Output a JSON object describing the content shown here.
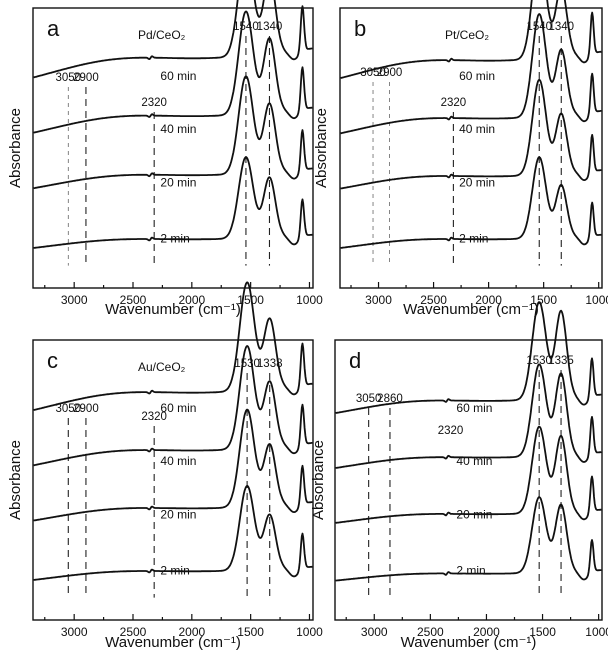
{
  "figure": {
    "xlabel": "Wavenumber (cm⁻¹)",
    "ylabel": "Absorbance"
  },
  "chart_data": [
    {
      "type": "line",
      "panel": "a",
      "catalyst": "Pd/CeO₂",
      "xlabel": "Wavenumber (cm⁻¹)",
      "ylabel": "Absorbance",
      "xlim": [
        3350,
        970
      ],
      "x_reversed": true,
      "xticks": [
        3000,
        2500,
        2000,
        1500,
        1000
      ],
      "reference_lines": [
        {
          "x": 3050,
          "label": "3050",
          "style": "light"
        },
        {
          "x": 2900,
          "label": "2900",
          "style": "dashed"
        },
        {
          "x": 2320,
          "label": "2320",
          "style": "dashed"
        },
        {
          "x": 1540,
          "label": "1540",
          "style": "dashed"
        },
        {
          "x": 1340,
          "label": "1340",
          "style": "dashed"
        }
      ],
      "series": [
        {
          "name": "2  min",
          "curve": {
            "base": 0.03,
            "drop": 0.1,
            "p1": 0.75,
            "p2": 0.55,
            "p3": 0.35
          }
        },
        {
          "name": "20 min",
          "curve": {
            "base": 0.05,
            "drop": 0.15,
            "p1": 0.9,
            "p2": 0.63,
            "p3": 0.38
          }
        },
        {
          "name": "40 min",
          "curve": {
            "base": 0.06,
            "drop": 0.19,
            "p1": 0.95,
            "p2": 0.68,
            "p3": 0.4
          }
        },
        {
          "name": "60 min",
          "curve": {
            "base": 0.07,
            "drop": 0.22,
            "p1": 1.0,
            "p2": 0.72,
            "p3": 0.42
          }
        }
      ]
    },
    {
      "type": "line",
      "panel": "b",
      "catalyst": "Pt/CeO₂",
      "xlabel": "Wavenumber (cm⁻¹)",
      "ylabel": "Absorbance",
      "xlim": [
        3350,
        970
      ],
      "x_reversed": true,
      "xticks": [
        3000,
        2500,
        2000,
        1500,
        1000
      ],
      "reference_lines": [
        {
          "x": 3050,
          "label": "3050",
          "style": "light"
        },
        {
          "x": 2900,
          "label": "2900",
          "style": "light"
        },
        {
          "x": 2320,
          "label": "2320",
          "style": "dashed"
        },
        {
          "x": 1540,
          "label": "1540",
          "style": "dashed"
        },
        {
          "x": 1340,
          "label": "1340",
          "style": "dashed"
        }
      ],
      "series": [
        {
          "name": "2  min",
          "curve": {
            "base": 0.03,
            "drop": 0.1,
            "p1": 0.75,
            "p2": 0.48,
            "p3": 0.32
          }
        },
        {
          "name": "20 min",
          "curve": {
            "base": 0.05,
            "drop": 0.14,
            "p1": 0.88,
            "p2": 0.55,
            "p3": 0.35
          }
        },
        {
          "name": "40 min",
          "curve": {
            "base": 0.06,
            "drop": 0.17,
            "p1": 0.95,
            "p2": 0.6,
            "p3": 0.37
          }
        },
        {
          "name": "60 min",
          "curve": {
            "base": 0.07,
            "drop": 0.2,
            "p1": 1.0,
            "p2": 0.64,
            "p3": 0.39
          }
        }
      ]
    },
    {
      "type": "line",
      "panel": "c",
      "catalyst": "Au/CeO₂",
      "xlabel": "Wavenumber (cm⁻¹)",
      "ylabel": "Absorbance",
      "xlim": [
        3350,
        970
      ],
      "x_reversed": true,
      "xticks": [
        3000,
        2500,
        2000,
        1500,
        1000
      ],
      "reference_lines": [
        {
          "x": 3050,
          "label": "3050",
          "style": "dashed"
        },
        {
          "x": 2900,
          "label": "2900",
          "style": "dashed"
        },
        {
          "x": 2320,
          "label": "2320",
          "style": "dashed"
        },
        {
          "x": 1530,
          "label": "1530",
          "style": "dashed"
        },
        {
          "x": 1338,
          "label": "1338",
          "style": "dashed"
        }
      ],
      "series": [
        {
          "name": "2  min",
          "curve": {
            "base": 0.03,
            "drop": 0.1,
            "p1": 0.78,
            "p2": 0.5,
            "p3": 0.33
          }
        },
        {
          "name": "20 min",
          "curve": {
            "base": 0.05,
            "drop": 0.14,
            "p1": 0.9,
            "p2": 0.56,
            "p3": 0.36
          }
        },
        {
          "name": "40 min",
          "curve": {
            "base": 0.06,
            "drop": 0.17,
            "p1": 0.95,
            "p2": 0.6,
            "p3": 0.38
          }
        },
        {
          "name": "60 min",
          "curve": {
            "base": 0.07,
            "drop": 0.2,
            "p1": 1.0,
            "p2": 0.64,
            "p3": 0.4
          }
        }
      ]
    },
    {
      "type": "line",
      "panel": "d",
      "catalyst": "",
      "xlabel": "Wavenumber (cm⁻¹)",
      "ylabel": "Absorbance",
      "xlim": [
        3350,
        970
      ],
      "x_reversed": true,
      "xticks": [
        3000,
        2500,
        2000,
        1500,
        1000
      ],
      "reference_lines": [
        {
          "x": 3050,
          "label": "3050",
          "style": "dashed"
        },
        {
          "x": 2860,
          "label": "2860",
          "style": "dashed"
        },
        {
          "x": 2320,
          "label": "2320",
          "style": "none"
        },
        {
          "x": 1530,
          "label": "1530",
          "style": "dashed"
        },
        {
          "x": 1335,
          "label": "1335",
          "style": "dashed"
        }
      ],
      "series": [
        {
          "name": "2  min",
          "curve": {
            "base": 0.03,
            "drop": 0.08,
            "p1": 0.7,
            "p2": 0.62,
            "p3": 0.3
          }
        },
        {
          "name": "20 min",
          "curve": {
            "base": 0.04,
            "drop": 0.1,
            "p1": 0.8,
            "p2": 0.7,
            "p3": 0.33
          }
        },
        {
          "name": "40 min",
          "curve": {
            "base": 0.05,
            "drop": 0.12,
            "p1": 0.85,
            "p2": 0.75,
            "p3": 0.35
          }
        },
        {
          "name": "60 min",
          "curve": {
            "base": 0.06,
            "drop": 0.14,
            "p1": 0.9,
            "p2": 0.8,
            "p3": 0.36
          }
        }
      ]
    }
  ]
}
